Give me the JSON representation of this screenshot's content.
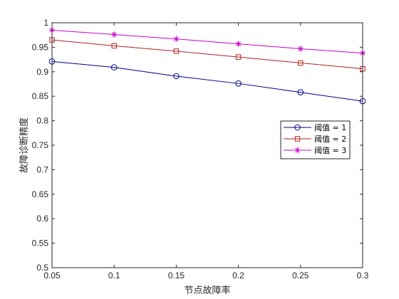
{
  "chart_data": {
    "type": "line",
    "title": "",
    "xlabel": "节点故障率",
    "ylabel": "故障诊断精度",
    "xlim": [
      0.05,
      0.3
    ],
    "ylim": [
      0.5,
      1.0
    ],
    "xticks": [
      "0.05",
      "0.1",
      "0.15",
      "0.2",
      "0.25",
      "0.3"
    ],
    "yticks": [
      "0.5",
      "0.55",
      "0.6",
      "0.65",
      "0.7",
      "0.75",
      "0.8",
      "0.85",
      "0.9",
      "0.95",
      "1"
    ],
    "grid": false,
    "legend_position": "right-middle",
    "x": [
      0.05,
      0.1,
      0.15,
      0.2,
      0.25,
      0.3
    ],
    "series": [
      {
        "name": "阈值 = 1",
        "color": "#00008b",
        "marker": "circle",
        "values": [
          0.921,
          0.909,
          0.891,
          0.876,
          0.858,
          0.84
        ]
      },
      {
        "name": "阈值 = 2",
        "color": "#b22222",
        "marker": "square",
        "values": [
          0.965,
          0.953,
          0.942,
          0.93,
          0.918,
          0.906
        ]
      },
      {
        "name": "阈值 = 3",
        "color": "#cc00cc",
        "marker": "asterisk",
        "values": [
          0.985,
          0.976,
          0.967,
          0.957,
          0.947,
          0.938
        ]
      }
    ]
  }
}
